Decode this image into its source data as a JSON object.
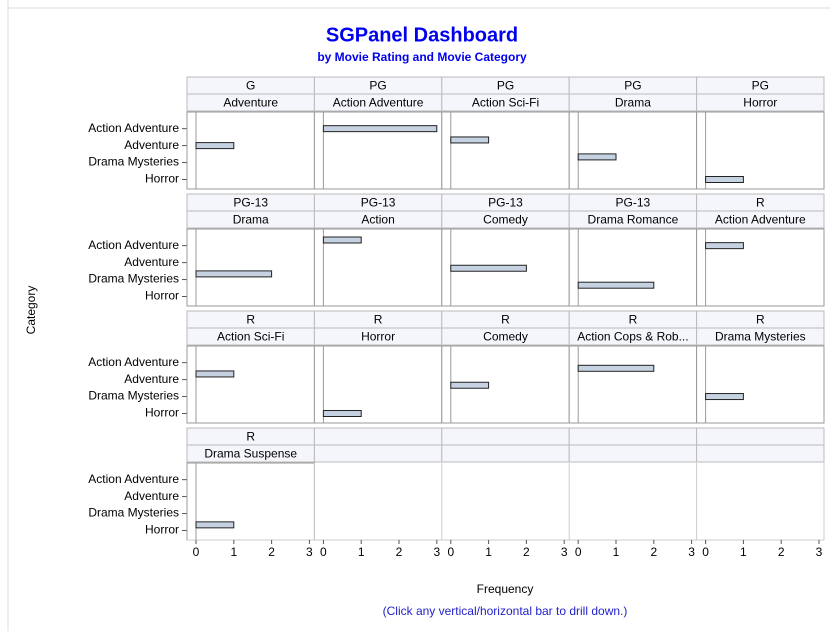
{
  "chart_data": {
    "type": "bar",
    "title": "SGPanel Dashboard",
    "subtitle": "by Movie Rating and Movie Category",
    "xlabel": "Frequency",
    "ylabel": "Category",
    "footnote": "(Click any vertical/horizontal bar to drill down.)",
    "categories": [
      null,
      "Action Adventure",
      null,
      null,
      "Adventure",
      null,
      null,
      "Drama Mysteries",
      null,
      null,
      "Horror"
    ],
    "xlim": [
      0,
      3
    ],
    "xticks": [
      0,
      1,
      2,
      3
    ],
    "color": "#c6d2e2",
    "panels": [
      {
        "rating": "G",
        "category": "Adventure",
        "values": [
          null,
          null,
          null,
          null,
          1,
          null,
          null,
          null,
          null,
          null,
          null
        ]
      },
      {
        "rating": "PG",
        "category": "Action Adventure",
        "values": [
          null,
          3,
          null,
          null,
          null,
          null,
          null,
          null,
          null,
          null,
          null
        ]
      },
      {
        "rating": "PG",
        "category": "Action Sci-Fi",
        "values": [
          null,
          null,
          null,
          1,
          null,
          null,
          null,
          null,
          null,
          null,
          null
        ]
      },
      {
        "rating": "PG",
        "category": "Drama",
        "values": [
          null,
          null,
          null,
          null,
          null,
          null,
          1,
          null,
          null,
          null,
          null
        ]
      },
      {
        "rating": "PG",
        "category": "Horror",
        "values": [
          null,
          null,
          null,
          null,
          null,
          null,
          null,
          null,
          null,
          null,
          1
        ]
      },
      {
        "rating": "PG-13",
        "category": "Drama",
        "values": [
          null,
          null,
          null,
          null,
          null,
          null,
          2,
          null,
          null,
          null,
          null
        ]
      },
      {
        "rating": "PG-13",
        "category": "Action",
        "values": [
          1,
          null,
          null,
          null,
          null,
          null,
          null,
          null,
          null,
          null,
          null
        ]
      },
      {
        "rating": "PG-13",
        "category": "Comedy",
        "values": [
          null,
          null,
          null,
          null,
          null,
          2,
          null,
          null,
          null,
          null,
          null
        ]
      },
      {
        "rating": "PG-13",
        "category": "Drama Romance",
        "values": [
          null,
          null,
          null,
          null,
          null,
          null,
          null,
          null,
          2,
          null,
          null
        ]
      },
      {
        "rating": "R",
        "category": "Action Adventure",
        "values": [
          null,
          1,
          null,
          null,
          null,
          null,
          null,
          null,
          null,
          null,
          null
        ]
      },
      {
        "rating": "R",
        "category": "Action Sci-Fi",
        "values": [
          null,
          null,
          null,
          1,
          null,
          null,
          null,
          null,
          null,
          null,
          null
        ]
      },
      {
        "rating": "R",
        "category": "Horror",
        "values": [
          null,
          null,
          null,
          null,
          null,
          null,
          null,
          null,
          null,
          null,
          1
        ]
      },
      {
        "rating": "R",
        "category": "Comedy",
        "values": [
          null,
          null,
          null,
          null,
          null,
          1,
          null,
          null,
          null,
          null,
          null
        ]
      },
      {
        "rating": "R",
        "category": "Action Cops & Rob...",
        "values": [
          null,
          null,
          2,
          null,
          null,
          null,
          null,
          null,
          null,
          null,
          null
        ]
      },
      {
        "rating": "R",
        "category": "Drama Mysteries",
        "values": [
          null,
          null,
          null,
          null,
          null,
          null,
          null,
          1,
          null,
          null,
          null
        ]
      },
      {
        "rating": "R",
        "category": "Drama Suspense",
        "values": [
          null,
          null,
          null,
          null,
          null,
          null,
          null,
          null,
          null,
          1,
          null
        ]
      }
    ]
  }
}
